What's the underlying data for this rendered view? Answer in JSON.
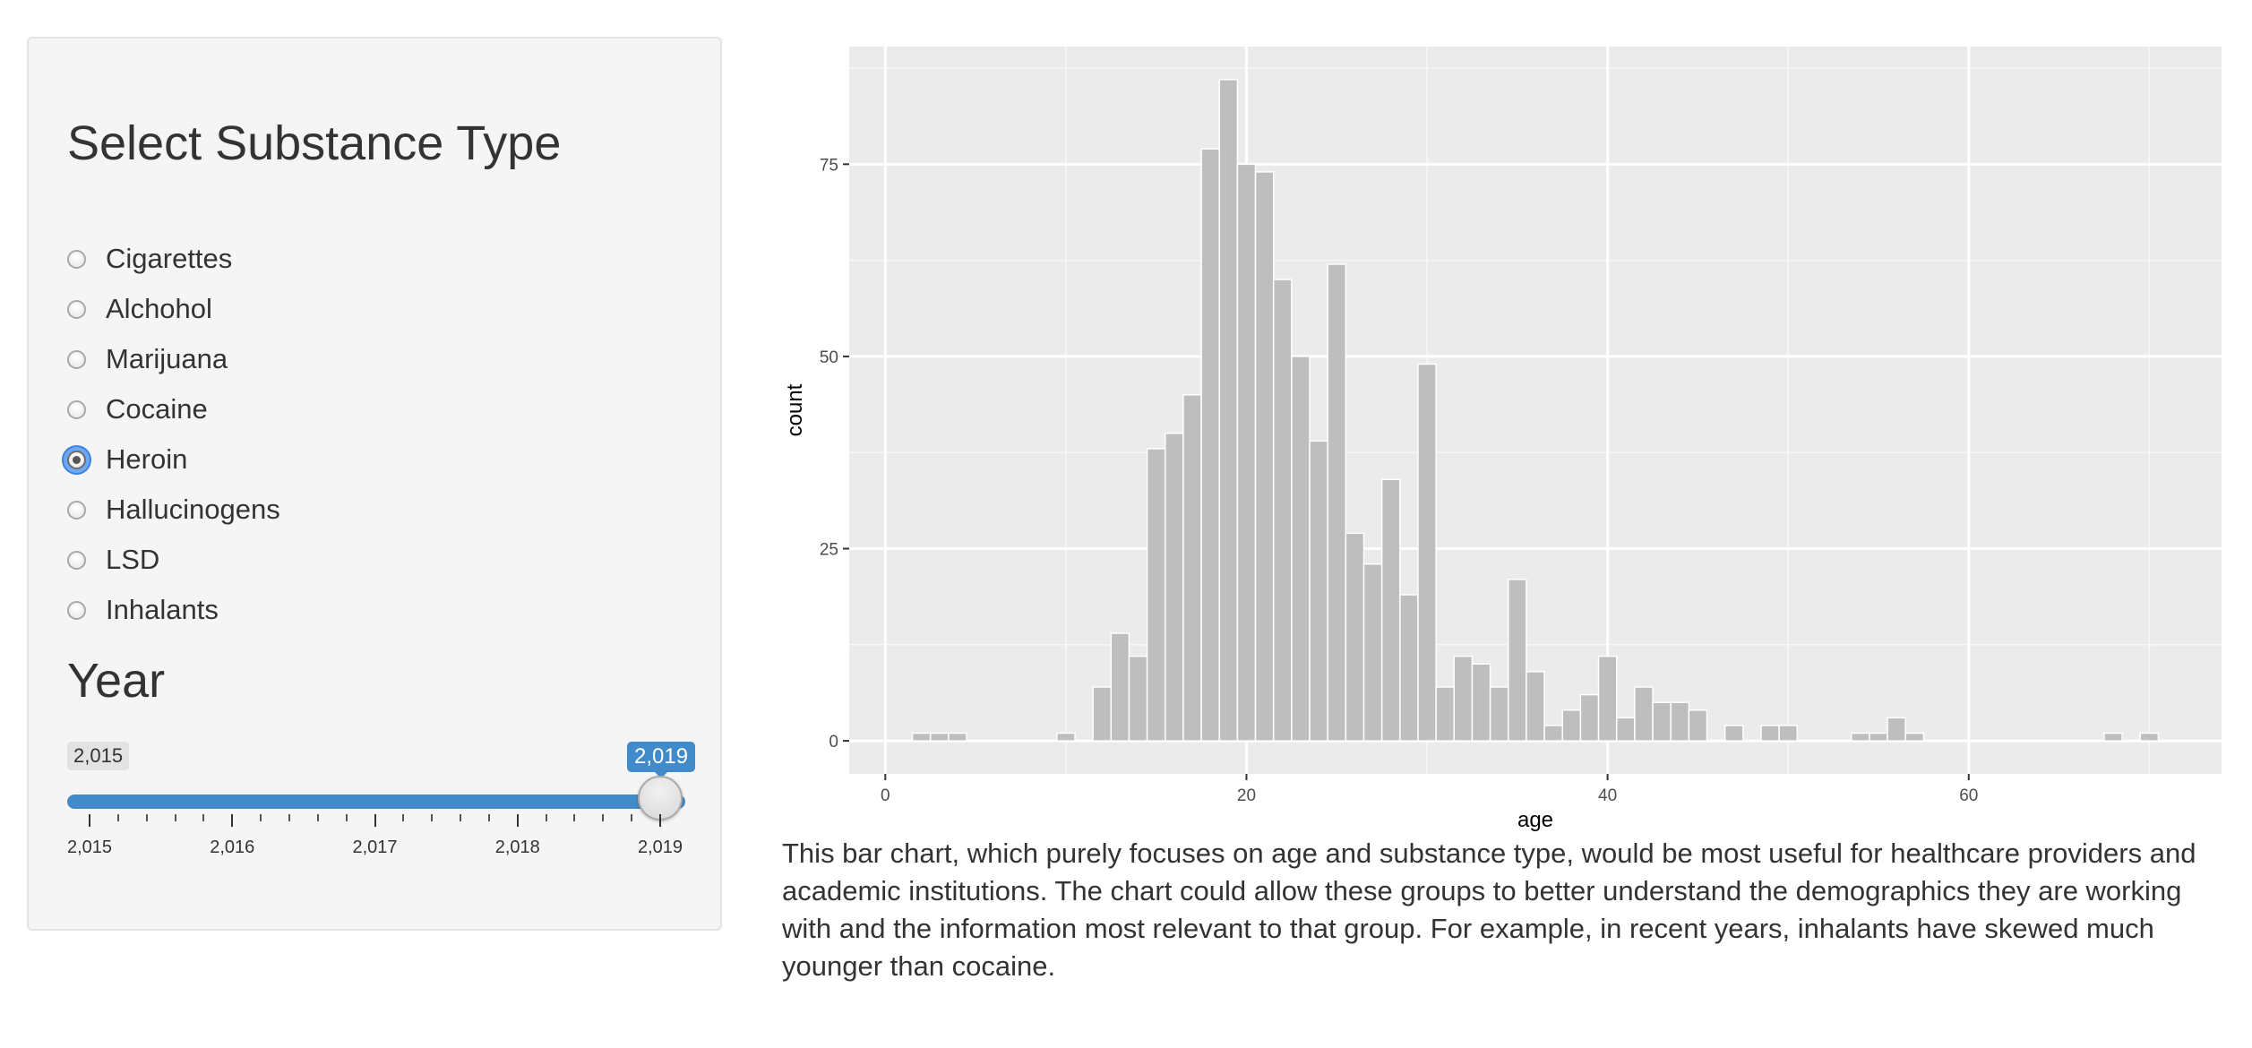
{
  "sidebar": {
    "substance_heading": "Select Substance Type",
    "substances": [
      {
        "label": "Cigarettes",
        "checked": false
      },
      {
        "label": "Alchohol",
        "checked": false
      },
      {
        "label": "Marijuana",
        "checked": false
      },
      {
        "label": "Cocaine",
        "checked": false
      },
      {
        "label": "Heroin",
        "checked": true
      },
      {
        "label": "Hallucinogens",
        "checked": false
      },
      {
        "label": "LSD",
        "checked": false
      },
      {
        "label": "Inhalants",
        "checked": false
      }
    ],
    "year_heading": "Year",
    "year_slider": {
      "min": 2015,
      "max": 2019,
      "value": 2019,
      "min_label": "2,015",
      "value_label": "2,019",
      "tick_labels": [
        "2,015",
        "2,016",
        "2,017",
        "2,018",
        "2,019"
      ],
      "accent_color": "#428bca"
    }
  },
  "chart_data": {
    "type": "bar",
    "title": "",
    "xlabel": "age",
    "ylabel": "count",
    "xlim": [
      -2,
      74
    ],
    "ylim": [
      -4.3,
      90.3
    ],
    "x_ticks": [
      0,
      20,
      40,
      60
    ],
    "y_ticks": [
      0,
      25,
      50,
      75
    ],
    "grid": true,
    "background_color": "#ebebeb",
    "bar_color": "#bebebe",
    "x": [
      2,
      3,
      4,
      10,
      12,
      13,
      14,
      15,
      16,
      17,
      18,
      19,
      20,
      21,
      22,
      23,
      24,
      25,
      26,
      27,
      28,
      29,
      30,
      31,
      32,
      33,
      34,
      35,
      36,
      37,
      38,
      39,
      40,
      41,
      42,
      43,
      44,
      45,
      47,
      49,
      50,
      54,
      55,
      56,
      57,
      68,
      70
    ],
    "values": [
      1,
      1,
      1,
      1,
      7,
      14,
      11,
      38,
      40,
      45,
      77,
      86,
      75,
      74,
      60,
      50,
      39,
      62,
      27,
      23,
      34,
      19,
      49,
      7,
      11,
      10,
      7,
      21,
      9,
      2,
      4,
      6,
      11,
      3,
      7,
      5,
      5,
      4,
      2,
      2,
      2,
      1,
      1,
      3,
      1,
      1,
      1
    ]
  },
  "description": "This bar chart, which purely focuses on age and substance type, would be most useful for healthcare providers and academic institutions. The chart could allow these groups to better understand the demographics they are working with and the information most relevant to that group. For example, in recent years, inhalants have skewed much younger than cocaine."
}
